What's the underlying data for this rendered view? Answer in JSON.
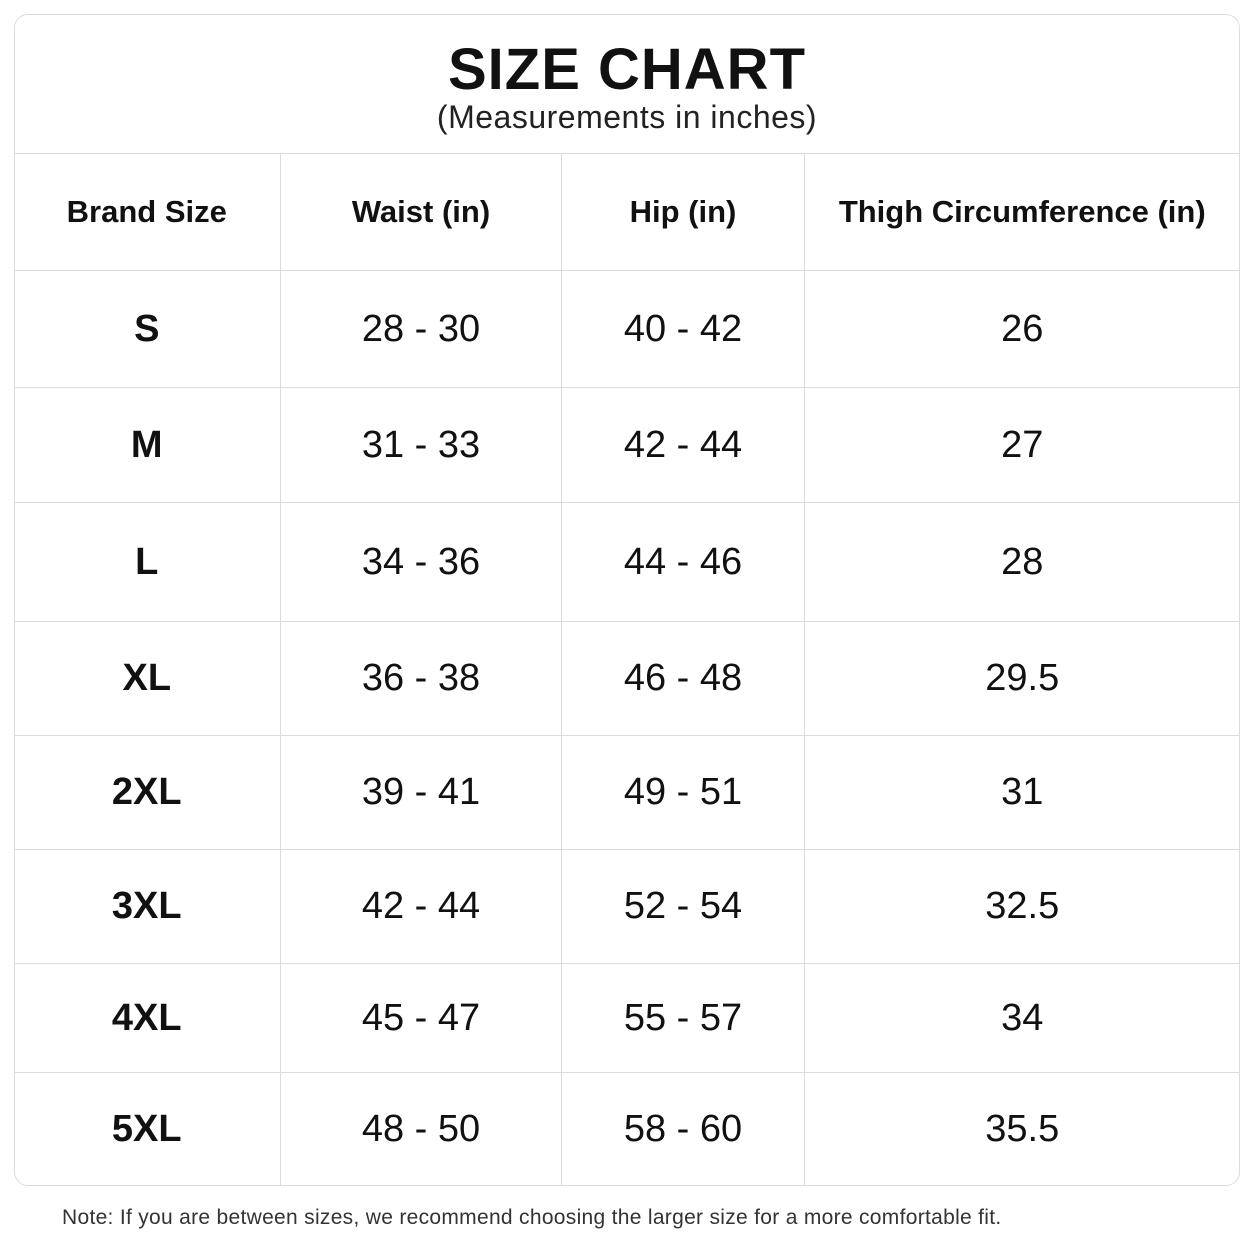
{
  "header": {
    "title": "SIZE CHART",
    "subtitle": "(Measurements in inches)"
  },
  "table": {
    "columns": [
      "Brand Size",
      "Waist (in)",
      "Hip (in)",
      "Thigh Circumference (in)"
    ],
    "rows": [
      {
        "size": "S",
        "waist": "28 - 30",
        "hip": "40 - 42",
        "thigh": "26"
      },
      {
        "size": "M",
        "waist": "31 - 33",
        "hip": "42 - 44",
        "thigh": "27"
      },
      {
        "size": "L",
        "waist": "34 - 36",
        "hip": "44 - 46",
        "thigh": "28"
      },
      {
        "size": "XL",
        "waist": "36 - 38",
        "hip": "46 - 48",
        "thigh": "29.5"
      },
      {
        "size": "2XL",
        "waist": "39 - 41",
        "hip": "49 - 51",
        "thigh": "31"
      },
      {
        "size": "3XL",
        "waist": "42 - 44",
        "hip": "52 - 54",
        "thigh": "32.5"
      },
      {
        "size": "4XL",
        "waist": "45 - 47",
        "hip": "55 - 57",
        "thigh": "34"
      },
      {
        "size": "5XL",
        "waist": "48 - 50",
        "hip": "58 - 60",
        "thigh": "35.5"
      }
    ]
  },
  "footer": {
    "note": "Note: If you are between sizes, we recommend choosing the larger size for a more comfortable fit."
  },
  "colors": {
    "border": "#dcdcdc",
    "text": "#111111",
    "background": "#ffffff"
  }
}
